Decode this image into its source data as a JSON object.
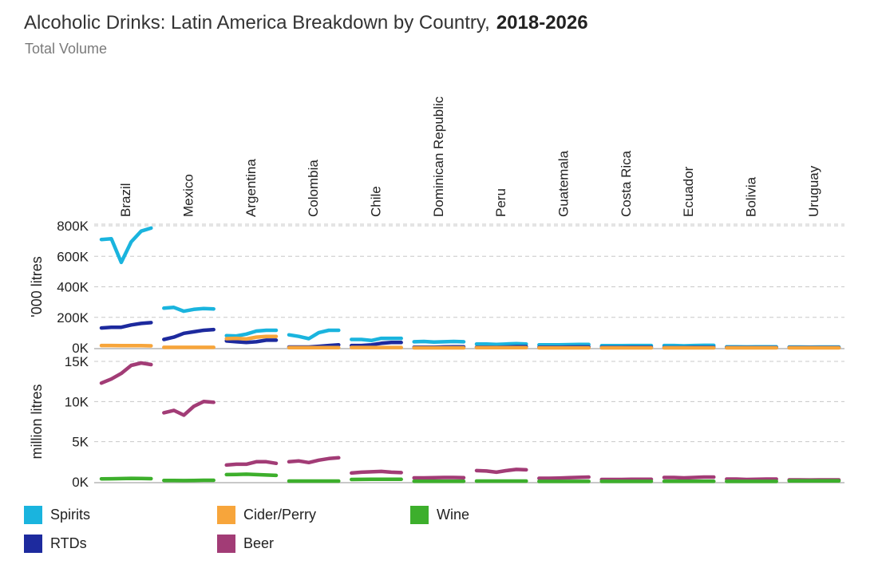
{
  "title": "Alcoholic Drinks: Latin America Breakdown by Country,",
  "year_range": "2018-2026",
  "subtitle": "Total Volume",
  "colors": {
    "Spirits": "#1ab4de",
    "RTDs": "#1d2a9e",
    "Cider/Perry": "#f7a53b",
    "Wine": "#3daf2c",
    "Beer": "#a23c76",
    "grid": "#c8c8c8",
    "axis": "#b5b5b5"
  },
  "legend": [
    {
      "name": "Spirits",
      "color": "#1ab4de"
    },
    {
      "name": "Cider/Perry",
      "color": "#f7a53b"
    },
    {
      "name": "Wine",
      "color": "#3daf2c"
    },
    {
      "name": "RTDs",
      "color": "#1d2a9e"
    },
    {
      "name": "Beer",
      "color": "#a23c76"
    }
  ],
  "chart_data": [
    {
      "type": "line",
      "panel": "top",
      "ylabel": "'000 litres",
      "ylim": [
        0,
        800000
      ],
      "yticks": [
        {
          "value": 0,
          "label": "0K"
        },
        {
          "value": 200000,
          "label": "200K"
        },
        {
          "value": 400000,
          "label": "400K"
        },
        {
          "value": 600000,
          "label": "600K"
        },
        {
          "value": 800000,
          "label": "800K"
        }
      ],
      "grid": true,
      "categories": [
        "Brazil",
        "Mexico",
        "Argentina",
        "Colombia",
        "Chile",
        "Dominican Republic",
        "Peru",
        "Guatemala",
        "Costa Rica",
        "Ecuador",
        "Bolivia",
        "Uruguay"
      ],
      "x": [
        2018,
        2019,
        2020,
        2021,
        2022,
        2023,
        2024,
        2025,
        2026
      ],
      "series": [
        {
          "name": "Spirits",
          "color": "#1ab4de",
          "values": [
            [
              710000,
              715000,
              560000,
              695000,
              765000,
              785000
            ],
            [
              260000,
              265000,
              240000,
              252000,
              258000,
              255000
            ],
            [
              80000,
              78000,
              90000,
              110000,
              115000,
              115000
            ],
            [
              85000,
              75000,
              60000,
              100000,
              115000,
              115000
            ],
            [
              55000,
              55000,
              48000,
              62000,
              62000,
              62000
            ],
            [
              40000,
              42000,
              38000,
              40000,
              42000,
              40000
            ],
            [
              25000,
              25000,
              22000,
              25000,
              27000,
              25000
            ],
            [
              20000,
              20000,
              20000,
              21000,
              22000,
              22000
            ],
            [
              14000,
              14000,
              14000,
              15000,
              15000,
              15000
            ],
            [
              15000,
              15000,
              13000,
              15000,
              16000,
              16000
            ],
            [
              7000,
              7000,
              6000,
              7000,
              7000,
              7000
            ],
            [
              5000,
              5000,
              4500,
              5000,
              5000,
              5000
            ]
          ]
        },
        {
          "name": "RTDs",
          "color": "#1d2a9e",
          "values": [
            [
              130000,
              135000,
              135000,
              150000,
              160000,
              165000
            ],
            [
              55000,
              70000,
              95000,
              105000,
              115000,
              120000
            ],
            [
              45000,
              40000,
              35000,
              40000,
              50000,
              50000
            ],
            [
              5000,
              5000,
              5000,
              10000,
              15000,
              20000
            ],
            [
              15000,
              15000,
              20000,
              30000,
              35000,
              35000
            ],
            [
              4000,
              4000,
              4000,
              6000,
              7000,
              7000
            ],
            [
              4000,
              4000,
              3000,
              5000,
              8000,
              8000
            ],
            [
              4000,
              4000,
              4000,
              5000,
              6000,
              6000
            ],
            [
              3000,
              3000,
              3000,
              4000,
              4000,
              4000
            ],
            [
              2000,
              2000,
              2000,
              3000,
              3000,
              3000
            ],
            [
              2000,
              2000,
              2000,
              2000,
              2000,
              2000
            ],
            [
              2000,
              2000,
              2000,
              2000,
              2000,
              2000
            ]
          ]
        },
        {
          "name": "Cider/Perry",
          "color": "#f7a53b",
          "values": [
            [
              15000,
              15000,
              14000,
              14000,
              14000,
              13000
            ],
            [
              3000,
              3000,
              3000,
              3000,
              3000,
              3000
            ],
            [
              60000,
              62000,
              58000,
              70000,
              75000,
              75000
            ],
            [
              1000,
              1000,
              1000,
              1000,
              1000,
              1000
            ],
            [
              2000,
              2000,
              2000,
              2000,
              2000,
              2000
            ],
            [
              0,
              0,
              0,
              0,
              0,
              0
            ],
            [
              1000,
              1000,
              1000,
              1000,
              1000,
              1000
            ],
            [
              0,
              0,
              0,
              0,
              0,
              0
            ],
            [
              0,
              0,
              0,
              0,
              0,
              0
            ],
            [
              0,
              0,
              0,
              0,
              0,
              0
            ],
            [
              0,
              0,
              0,
              0,
              0,
              0
            ],
            [
              0,
              0,
              0,
              0,
              0,
              0
            ]
          ]
        }
      ]
    },
    {
      "type": "line",
      "panel": "bottom",
      "ylabel": "million litres",
      "ylim": [
        0,
        15000
      ],
      "yticks": [
        {
          "value": 0,
          "label": "0K"
        },
        {
          "value": 5000,
          "label": "5K"
        },
        {
          "value": 10000,
          "label": "10K"
        },
        {
          "value": 15000,
          "label": "15K"
        }
      ],
      "grid": true,
      "categories": [
        "Brazil",
        "Mexico",
        "Argentina",
        "Colombia",
        "Chile",
        "Dominican Republic",
        "Peru",
        "Guatemala",
        "Costa Rica",
        "Ecuador",
        "Bolivia",
        "Uruguay"
      ],
      "x": [
        2018,
        2019,
        2020,
        2021,
        2022,
        2023,
        2024,
        2025,
        2026
      ],
      "series": [
        {
          "name": "Beer",
          "color": "#a23c76",
          "values": [
            [
              12300,
              12800,
              13500,
              14500,
              14800,
              14600
            ],
            [
              8600,
              8900,
              8300,
              9400,
              10000,
              9900
            ],
            [
              2100,
              2200,
              2200,
              2500,
              2500,
              2300
            ],
            [
              2500,
              2600,
              2400,
              2700,
              2900,
              3000
            ],
            [
              1100,
              1200,
              1250,
              1300,
              1200,
              1150
            ],
            [
              500,
              500,
              520,
              550,
              550,
              520
            ],
            [
              1400,
              1350,
              1200,
              1400,
              1550,
              1500
            ],
            [
              450,
              450,
              480,
              520,
              560,
              600
            ],
            [
              300,
              300,
              300,
              320,
              330,
              330
            ],
            [
              550,
              550,
              500,
              550,
              600,
              600
            ],
            [
              350,
              350,
              300,
              330,
              350,
              350
            ],
            [
              250,
              250,
              240,
              250,
              250,
              250
            ]
          ]
        },
        {
          "name": "Wine",
          "color": "#3daf2c",
          "values": [
            [
              380,
              390,
              410,
              440,
              420,
              400
            ],
            [
              180,
              180,
              160,
              180,
              200,
              200
            ],
            [
              900,
              920,
              950,
              900,
              850,
              800
            ],
            [
              100,
              100,
              100,
              100,
              100,
              100
            ],
            [
              300,
              310,
              320,
              330,
              320,
              320
            ],
            [
              80,
              80,
              80,
              80,
              80,
              80
            ],
            [
              100,
              100,
              100,
              100,
              100,
              100
            ],
            [
              60,
              60,
              60,
              60,
              60,
              60
            ],
            [
              60,
              60,
              60,
              60,
              60,
              60
            ],
            [
              70,
              70,
              70,
              70,
              70,
              70
            ],
            [
              60,
              60,
              60,
              60,
              60,
              60
            ],
            [
              120,
              120,
              120,
              120,
              120,
              120
            ]
          ]
        }
      ]
    }
  ]
}
